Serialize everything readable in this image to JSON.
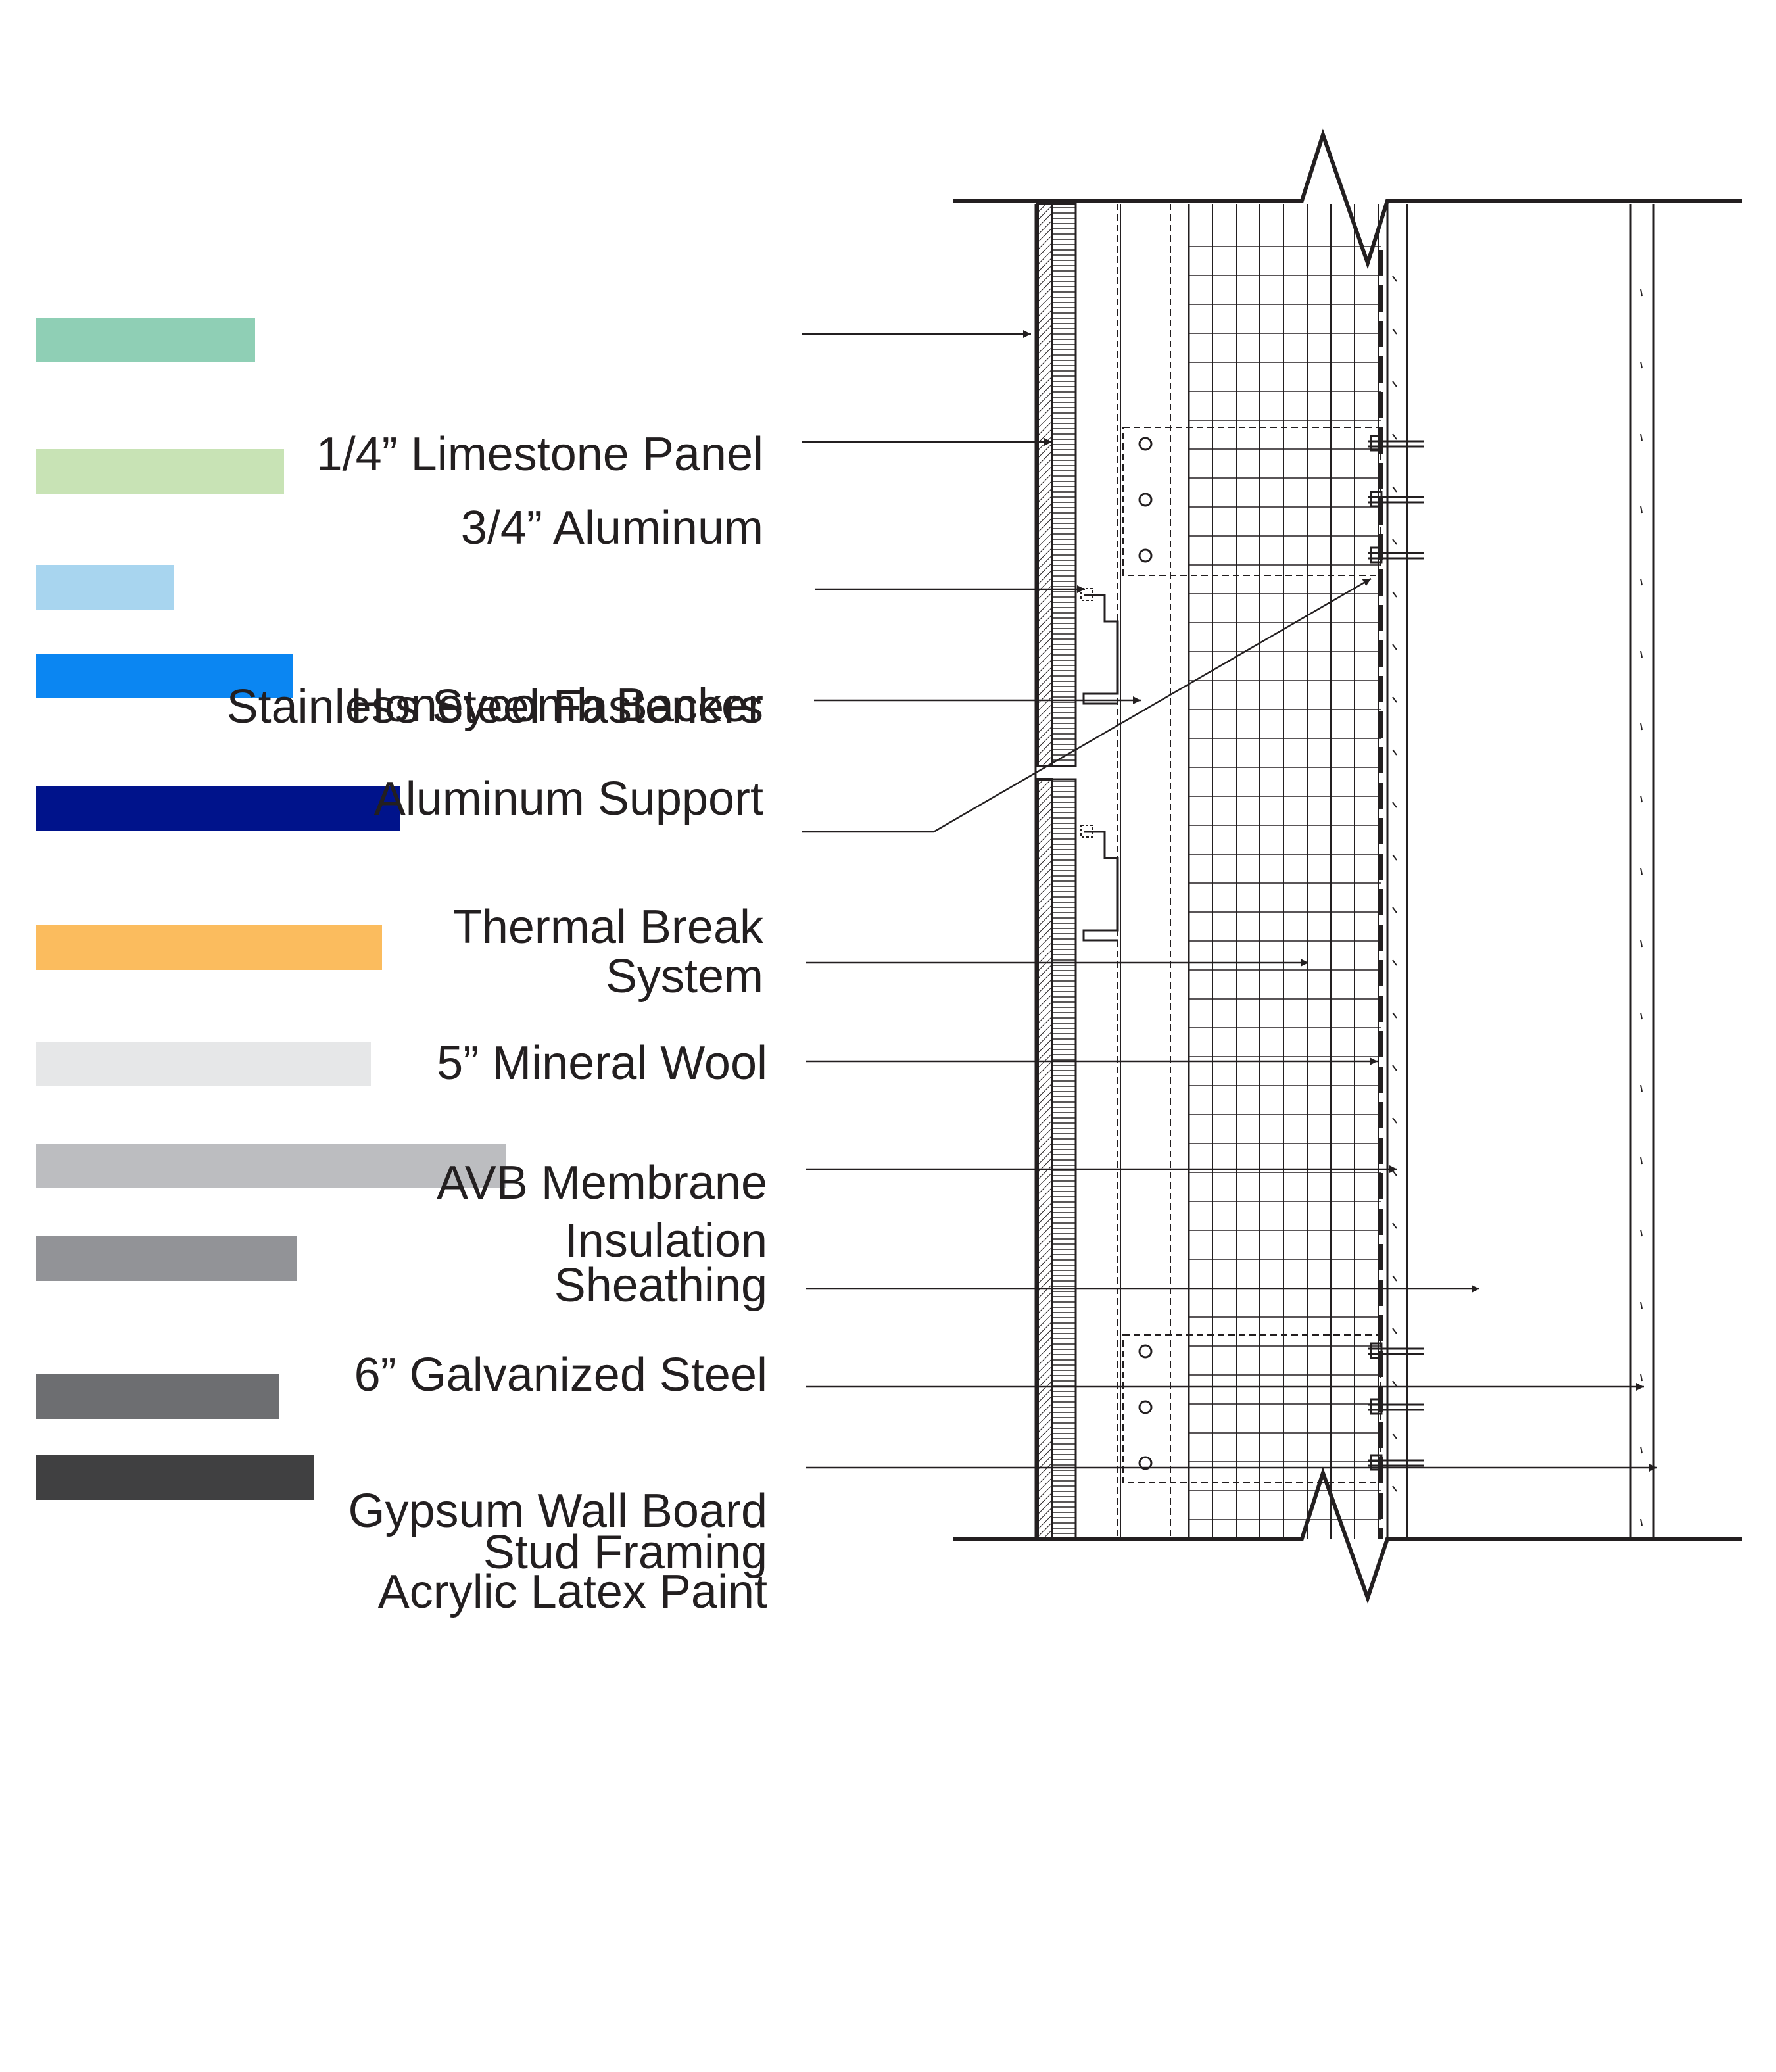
{
  "legend": [
    {
      "id": "limestone",
      "label_lines": [
        "1/4” Limestone Panel"
      ],
      "color": "#8fcfb5"
    },
    {
      "id": "honeycomb",
      "label_lines": [
        "3/4” Aluminum",
        "Honeycomb Backer"
      ],
      "color": "#c8e3b5"
    },
    {
      "id": "fasteners",
      "label_lines": [
        "Stainless Steel Fasteners"
      ],
      "color": "#a8d5ef"
    },
    {
      "id": "support",
      "label_lines": [
        "Aluminum Support",
        "System"
      ],
      "color": "#0b86f2"
    },
    {
      "id": "thermal",
      "label_lines": [
        "Thermal Break"
      ],
      "color": "#00138b"
    },
    {
      "id": "mineral-wool",
      "label_lines": [
        "5” Mineral Wool",
        "Insulation"
      ],
      "color": "#fbbc5e"
    },
    {
      "id": "avb",
      "label_lines": [
        "AVB Membrane"
      ],
      "color": "#e6e7e8"
    },
    {
      "id": "sheathing",
      "label_lines": [
        "Sheathing"
      ],
      "color": "#bcbdc0"
    },
    {
      "id": "studs",
      "label_lines": [
        "6” Galvanized Steel",
        "Stud Framing"
      ],
      "color": "#929397"
    },
    {
      "id": "gypsum",
      "label_lines": [
        "Gypsum Wall Board"
      ],
      "color": "#6d6e71"
    },
    {
      "id": "paint",
      "label_lines": [
        "Acrylic Latex Paint"
      ],
      "color": "#404041"
    }
  ]
}
